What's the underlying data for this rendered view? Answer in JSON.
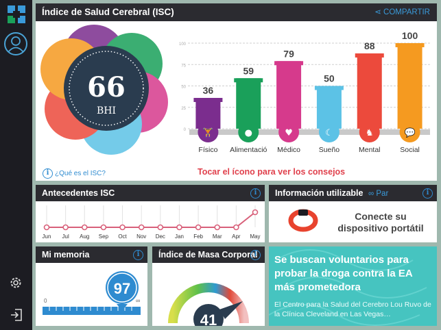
{
  "brand_colors": {
    "sidebar": "#1c1c22",
    "accent": "#2e8bd0",
    "tip": "#e0404c",
    "promo_bg": "#46c4c0"
  },
  "main": {
    "title": "Índice de Salud Cerebral (ISC)",
    "share_label": "COMPARTIR",
    "score": "66",
    "score_unit": "BHI",
    "what_is_label": "¿Qué es el ISC?",
    "tip": "Tocar el ícono para ver los consejos"
  },
  "chart_data": {
    "type": "bar",
    "categories": [
      "Físico",
      "Alimentació",
      "Médico",
      "Sueño",
      "Mental",
      "Social"
    ],
    "values": [
      36,
      59,
      79,
      50,
      88,
      100
    ],
    "colors": [
      "#7b2d8e",
      "#1aa05a",
      "#d63a8c",
      "#5cc2e6",
      "#ec4a3c",
      "#f59a20"
    ],
    "icons": [
      "dumbbell-icon",
      "apple-icon",
      "heart-icon",
      "moon-icon",
      "chess-knight-icon",
      "speech-bubbles-icon"
    ],
    "yticks": [
      "0",
      "25",
      "50",
      "75",
      "100"
    ],
    "ylim": [
      0,
      100
    ]
  },
  "history": {
    "title": "Antecedentes ISC",
    "months": [
      "Jun",
      "Jul",
      "Aug",
      "Sep",
      "Oct",
      "Nov",
      "Dec",
      "Jan",
      "Feb",
      "Mar",
      "Apr",
      "May"
    ]
  },
  "usable": {
    "title": "Información utilizable",
    "pair_label": "Par",
    "connect_text": "Conecte su dispositivo portátil"
  },
  "memory": {
    "title": "Mi memoria",
    "value": "97",
    "min_label": "0",
    "max_label": "∞"
  },
  "bmi": {
    "title": "Índice de Masa Corporal",
    "value": "41"
  },
  "promo": {
    "title": "Se buscan voluntarios para probar la droga contra la EA más prometedora",
    "body": "El Centro para la Salud del Cerebro Lou Ruvo de la Clínica Cleveland en Las Vegas…"
  }
}
